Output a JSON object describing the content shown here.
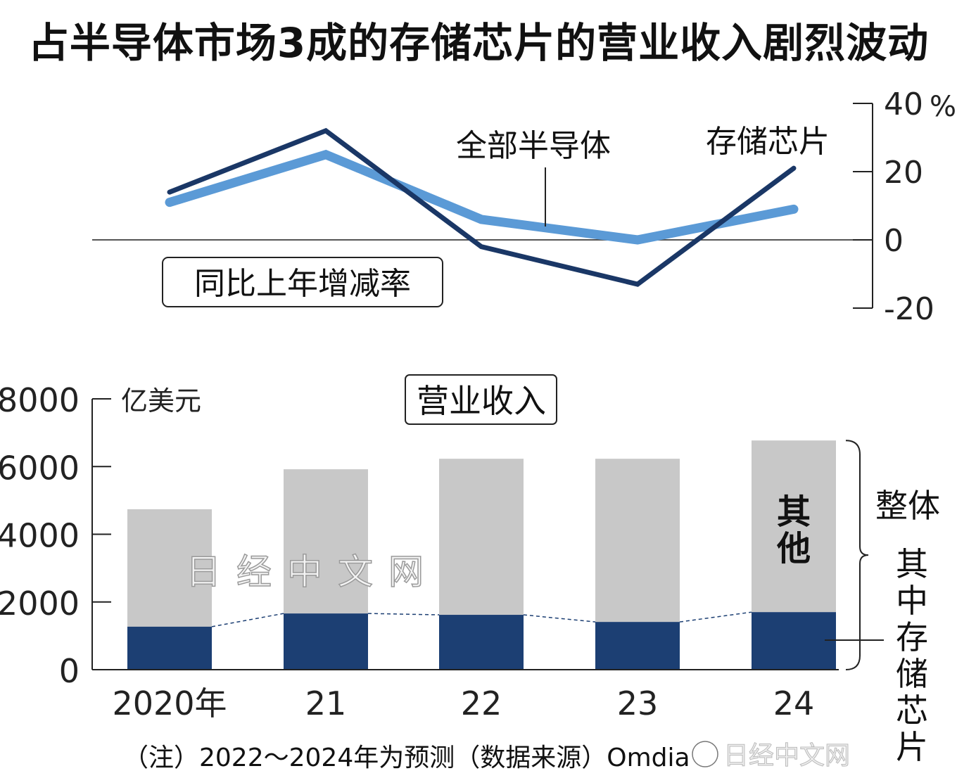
{
  "title": "占半导体市场3成的存储芯片的营业收入剧烈波动",
  "chart_data": [
    {
      "type": "line",
      "title": "同比上年增减率",
      "x": [
        "2020",
        "2021",
        "2022",
        "2023",
        "2024"
      ],
      "ylabel": "%",
      "ylim": [
        -20,
        40
      ],
      "yticks": [
        "40",
        "20",
        "0",
        "-20"
      ],
      "unit": "%",
      "series": [
        {
          "name": "全部半导体",
          "values": [
            11,
            25,
            6,
            0,
            9
          ],
          "color": "#5b9ad6"
        },
        {
          "name": "存储芯片",
          "values": [
            14,
            32,
            -2,
            -13,
            21
          ],
          "color": "#1a3766"
        }
      ]
    },
    {
      "type": "bar",
      "title": "营业收入",
      "ylabel": "亿美元",
      "categories": [
        "2020年",
        "21",
        "22",
        "23",
        "24"
      ],
      "ylim": [
        0,
        8000
      ],
      "yticks": [
        "0",
        "2000",
        "4000",
        "6000",
        "8000"
      ],
      "series": [
        {
          "name": "其中存储芯片",
          "values": [
            1270,
            1660,
            1620,
            1410,
            1700
          ],
          "color": "#1c3f73"
        },
        {
          "name": "其他",
          "values": [
            3470,
            4260,
            4610,
            4820,
            5070
          ],
          "color": "#c8c8c8"
        }
      ],
      "totals_label": "整体",
      "totals": [
        4740,
        5920,
        6230,
        6230,
        6770
      ]
    }
  ],
  "note": "（注）2022～2024年为预测（数据来源）Omdia",
  "watermark": "日经中文网"
}
